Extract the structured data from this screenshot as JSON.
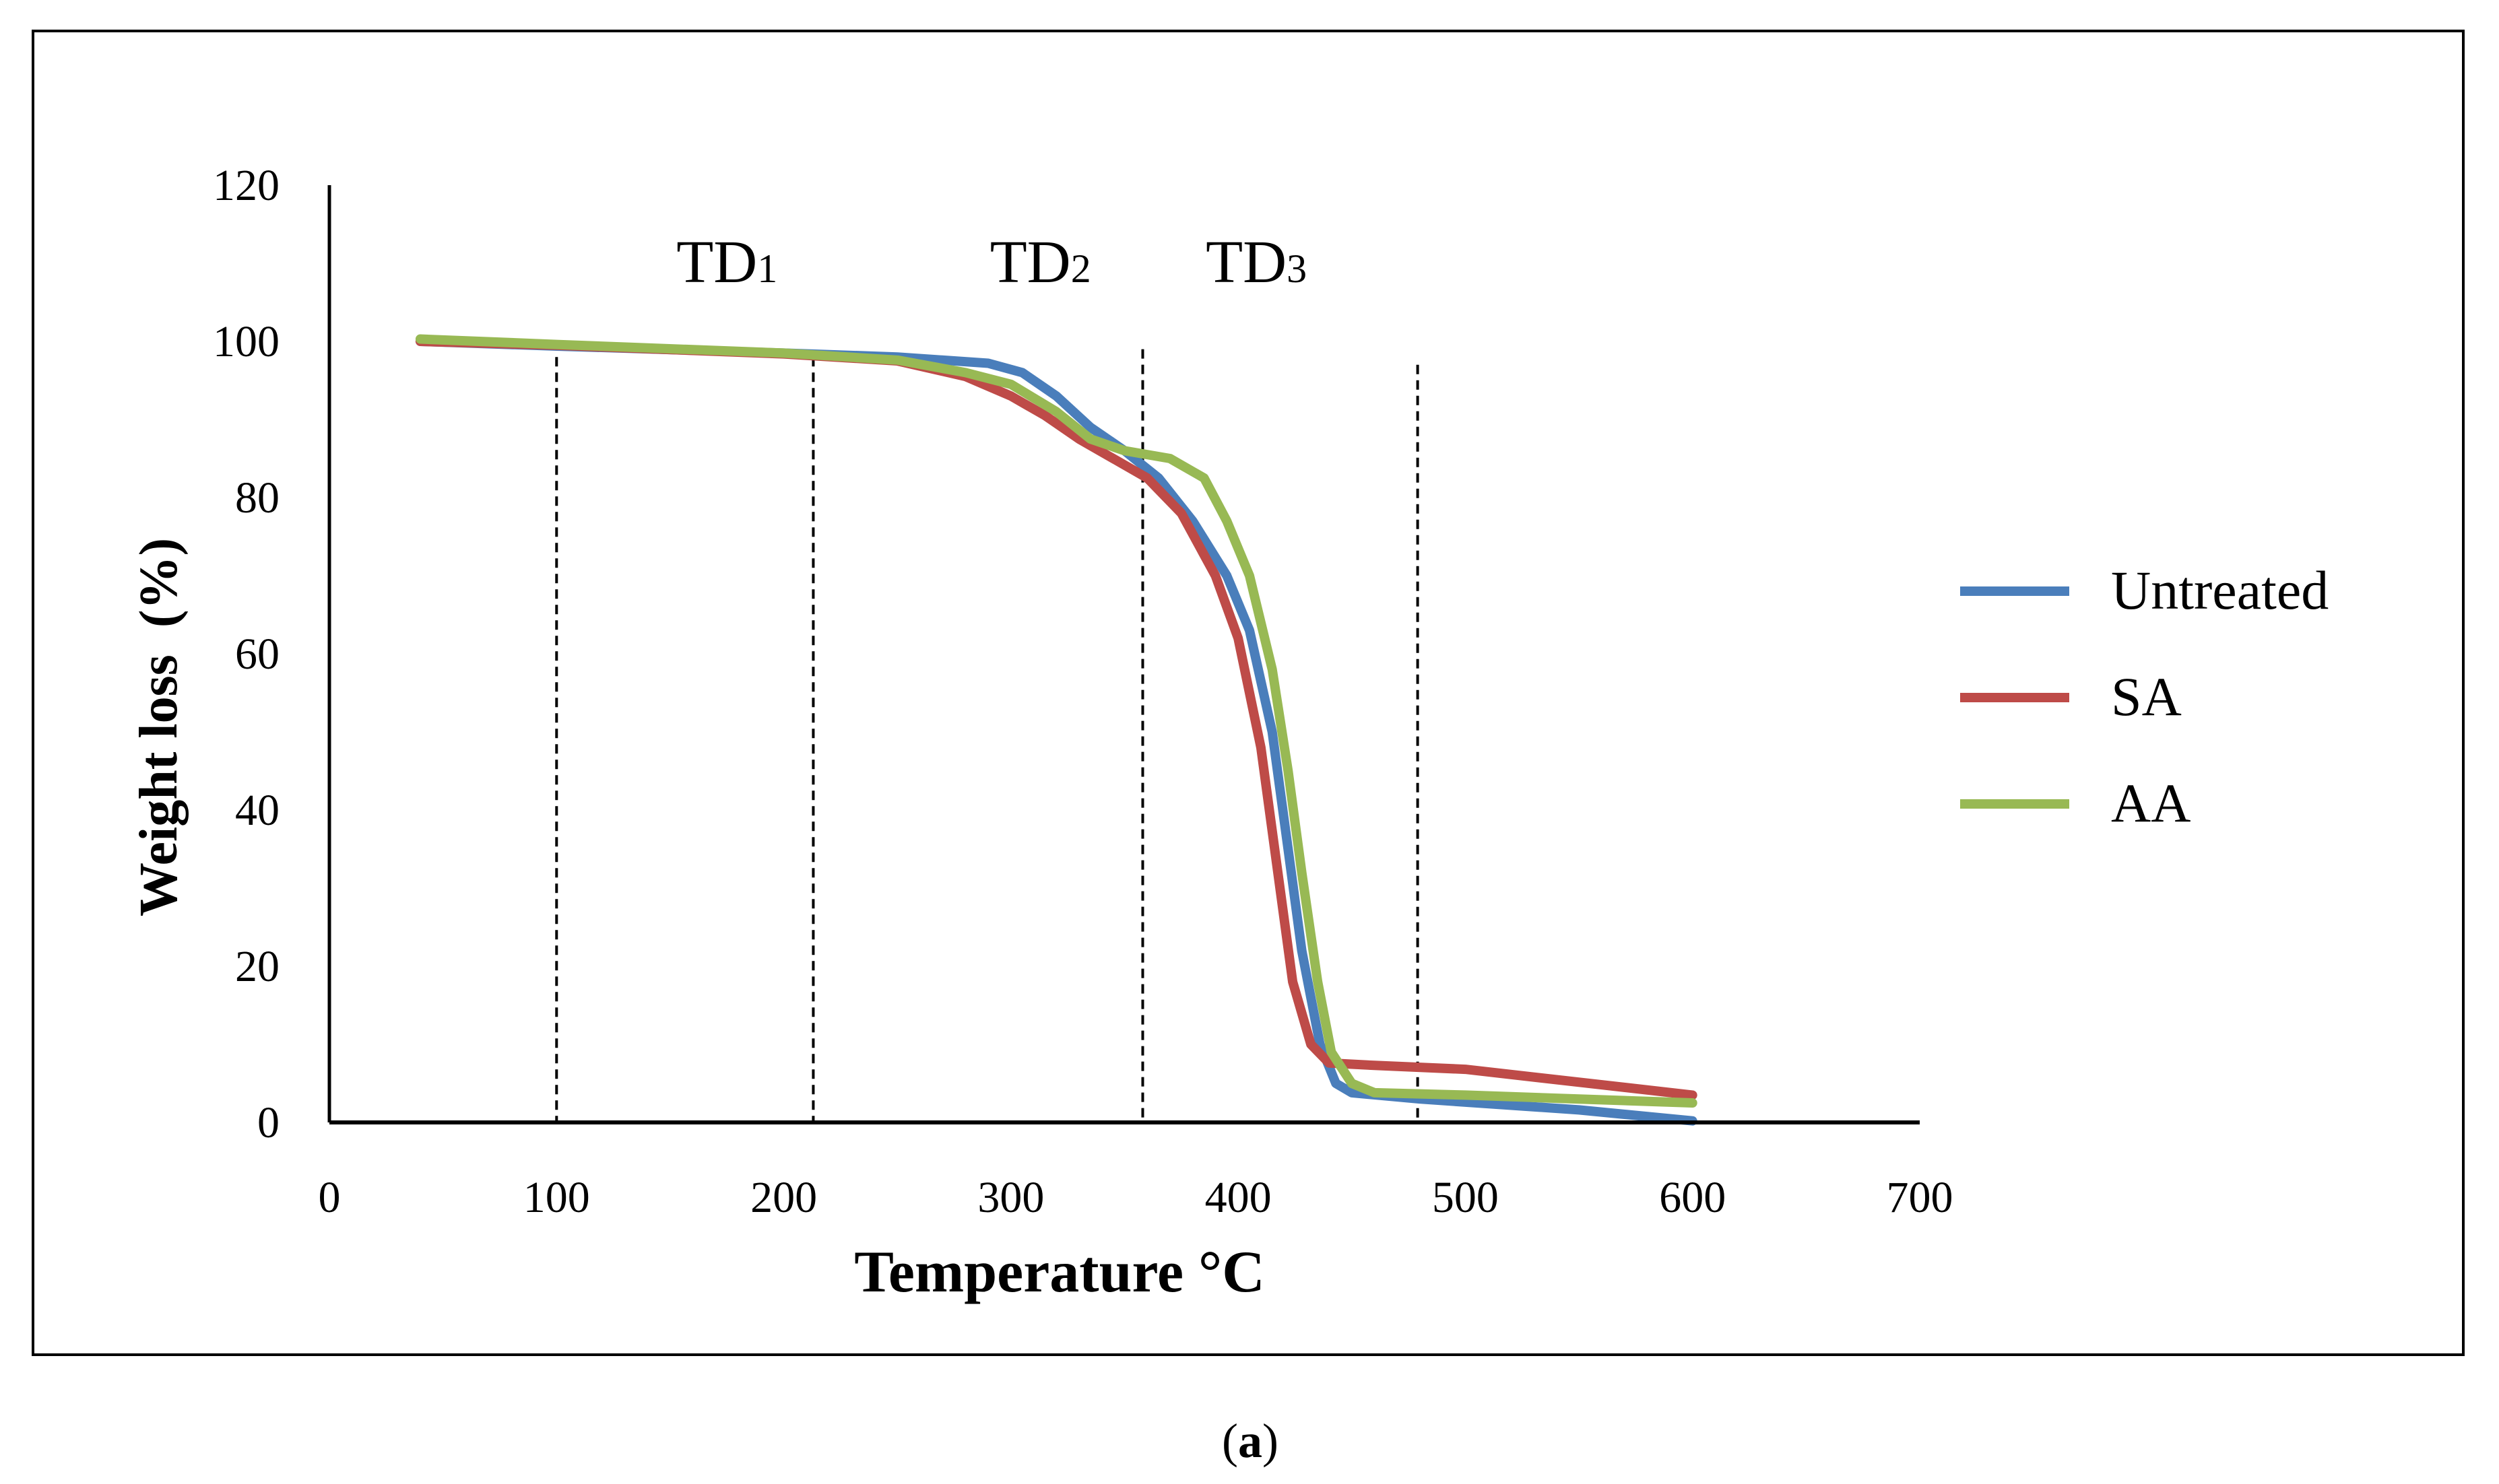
{
  "chart_data": {
    "type": "line",
    "title": "",
    "xlabel": "Temperature °C",
    "ylabel": "Weight loss  (%)",
    "xlim": [
      0,
      700
    ],
    "ylim": [
      0,
      120
    ],
    "x_ticks": [
      0,
      100,
      200,
      300,
      400,
      500,
      600,
      700
    ],
    "y_ticks": [
      0,
      20,
      40,
      60,
      80,
      100,
      120
    ],
    "grid": false,
    "legend_position": "right",
    "stage_boundaries": [
      {
        "x": 100,
        "y_top": 98
      },
      {
        "x": 213,
        "y_top": 98
      },
      {
        "x": 358,
        "y_top": 99
      },
      {
        "x": 479,
        "y_top": 97
      }
    ],
    "annotations": [
      {
        "label": "TD",
        "subscript": "1",
        "x": 175,
        "y": 110
      },
      {
        "label": "TD",
        "subscript": "2",
        "x": 313,
        "y": 110
      },
      {
        "label": "TD",
        "subscript": "3",
        "x": 408,
        "y": 110
      }
    ],
    "series": [
      {
        "name": "Untreated",
        "color": "#4a7ebb",
        "points": [
          [
            40,
            100
          ],
          [
            100,
            99.4
          ],
          [
            200,
            98.5
          ],
          [
            250,
            98
          ],
          [
            290,
            97.2
          ],
          [
            305,
            96
          ],
          [
            320,
            93
          ],
          [
            335,
            89
          ],
          [
            350,
            86
          ],
          [
            365,
            82.5
          ],
          [
            380,
            77
          ],
          [
            395,
            70
          ],
          [
            405,
            63
          ],
          [
            415,
            50
          ],
          [
            422,
            35
          ],
          [
            428,
            22
          ],
          [
            436,
            10
          ],
          [
            443,
            5
          ],
          [
            450,
            3.8
          ],
          [
            480,
            3
          ],
          [
            550,
            1.6
          ],
          [
            600,
            0.2
          ]
        ]
      },
      {
        "name": "SA",
        "color": "#be4b48",
        "points": [
          [
            40,
            100
          ],
          [
            100,
            99.5
          ],
          [
            200,
            98.4
          ],
          [
            250,
            97.5
          ],
          [
            280,
            95.5
          ],
          [
            300,
            93
          ],
          [
            315,
            90.5
          ],
          [
            330,
            87.5
          ],
          [
            345,
            85
          ],
          [
            360,
            82.5
          ],
          [
            375,
            78
          ],
          [
            390,
            70
          ],
          [
            400,
            62
          ],
          [
            410,
            48
          ],
          [
            417,
            33
          ],
          [
            424,
            18
          ],
          [
            432,
            10
          ],
          [
            440,
            7.6
          ],
          [
            460,
            7.3
          ],
          [
            500,
            6.8
          ],
          [
            600,
            3.5
          ]
        ]
      },
      {
        "name": "AA",
        "color": "#98b954",
        "points": [
          [
            40,
            100.3
          ],
          [
            100,
            99.6
          ],
          [
            200,
            98.5
          ],
          [
            250,
            97.6
          ],
          [
            280,
            96
          ],
          [
            300,
            94.5
          ],
          [
            320,
            91
          ],
          [
            335,
            87.5
          ],
          [
            350,
            86
          ],
          [
            370,
            85
          ],
          [
            385,
            82.5
          ],
          [
            395,
            77
          ],
          [
            405,
            70
          ],
          [
            415,
            58
          ],
          [
            422,
            45
          ],
          [
            428,
            32
          ],
          [
            435,
            18
          ],
          [
            441,
            9
          ],
          [
            450,
            5
          ],
          [
            460,
            3.8
          ],
          [
            500,
            3.5
          ],
          [
            550,
            3
          ],
          [
            600,
            2.5
          ]
        ]
      }
    ]
  },
  "legend": {
    "items": [
      {
        "label": "Untreated",
        "color": "#4a7ebb"
      },
      {
        "label": "SA",
        "color": "#be4b48"
      },
      {
        "label": "AA",
        "color": "#98b954"
      }
    ]
  },
  "caption": {
    "open": "(",
    "letter": "a",
    "close": ")"
  }
}
